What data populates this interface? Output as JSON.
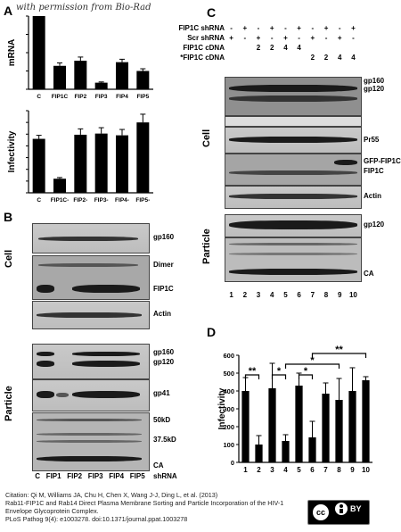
{
  "watermark": "with permission from Bio-Rad",
  "panels": {
    "A": "A",
    "B": "B",
    "C": "C",
    "D": "D"
  },
  "panel_a": {
    "top_ylabel": "mRNA",
    "bottom_ylabel": "Infectivity"
  },
  "panel_b": {
    "cell_label": "Cell",
    "particle_label": "Particle",
    "labels": {
      "gp160": "gp160",
      "dimer": "Dimer",
      "fip1c": "FIP1C",
      "actin": "Actin",
      "gp160b": "gp160",
      "gp120": "gp120",
      "gp41": "gp41",
      "kd50": "50kD",
      "kd375": "37.5kD",
      "ca": "CA",
      "shrna": "shRNA"
    },
    "lanes": [
      "C",
      "FIP1",
      "FIP2",
      "FIP3",
      "FIP4",
      "FIP5"
    ]
  },
  "panel_c": {
    "rows": [
      {
        "label": "FIP1C shRNA",
        "cells": [
          "-",
          "+",
          "-",
          "+",
          "-",
          "+",
          "-",
          "+",
          "-",
          "+"
        ]
      },
      {
        "label": "Scr shRNA",
        "cells": [
          "+",
          "-",
          "+",
          "-",
          "+",
          "-",
          "+",
          "-",
          "+",
          "-"
        ]
      },
      {
        "label": "FIP1C cDNA",
        "cells": [
          "",
          "",
          "2",
          "2",
          "4",
          "4",
          "",
          "",
          "",
          ""
        ]
      },
      {
        "label": "FIP1C cDNA*",
        "cells": [
          "",
          "",
          "",
          "",
          "",
          "",
          "2",
          "2",
          "4",
          "4"
        ]
      }
    ],
    "cell_label": "Cell",
    "particle_label": "Particle",
    "labels": {
      "gp160": "gp160",
      "gp120": "gp120",
      "pr55": "Pr55",
      "gfp_fip1c": "GFP-FIP1C",
      "fip1c": "FIP1C",
      "actin": "Actin",
      "gp120b": "gp120",
      "ca": "CA"
    },
    "lane_numbers": [
      "1",
      "2",
      "3",
      "4",
      "5",
      "6",
      "7",
      "8",
      "9",
      "10"
    ]
  },
  "panel_d": {
    "sig_labels": [
      "**",
      "*",
      "*",
      "*",
      "**"
    ]
  },
  "chart_data": [
    {
      "type": "bar",
      "title": "",
      "xlabel": "",
      "ylabel": "mRNA",
      "categories": [
        "C",
        "FIP1C",
        "FIP2",
        "FIP3",
        "FIP4",
        "FIP5"
      ],
      "values": [
        100,
        32,
        39,
        9,
        37,
        25
      ],
      "errors": [
        0,
        4,
        5,
        1,
        4,
        3
      ],
      "ylim": [
        0,
        100
      ]
    },
    {
      "type": "bar",
      "title": "",
      "xlabel": "",
      "ylabel": "Infectivity",
      "categories": [
        "C",
        "FIP1C-",
        "FIP2-",
        "FIP3-",
        "FIP4-",
        "FIP5-"
      ],
      "values": [
        460,
        120,
        495,
        505,
        490,
        600
      ],
      "errors": [
        30,
        10,
        50,
        50,
        50,
        70
      ],
      "ylim": [
        0,
        700
      ]
    },
    {
      "type": "bar",
      "title": "",
      "xlabel": "",
      "ylabel": "Infectivity",
      "categories": [
        "1",
        "2",
        "3",
        "4",
        "5",
        "6",
        "7",
        "8",
        "9",
        "10"
      ],
      "yticks": [
        "0",
        "100",
        "200",
        "300",
        "400",
        "500",
        "600"
      ],
      "values": [
        400,
        100,
        415,
        120,
        430,
        140,
        385,
        350,
        400,
        460
      ],
      "errors": [
        75,
        50,
        140,
        35,
        70,
        90,
        60,
        120,
        130,
        20
      ],
      "ylim": [
        0,
        600
      ]
    }
  ],
  "citation": {
    "line1": "Citation: Qi M, Williams JA, Chu H, Chen X, Wang J-J, Ding L, et al. (2013)",
    "line2": "Rab11-FIP1C and Rab14 Direct Plasma Membrane Sorting and Particle Incorporation of the HIV-1",
    "line3": "Envelope Glycoprotein Complex.",
    "line4": "PLoS Pathog 9(4): e1003278. doi:10.1371/journal.ppat.1003278"
  },
  "license": {
    "cc": "cc",
    "by": "BY"
  }
}
